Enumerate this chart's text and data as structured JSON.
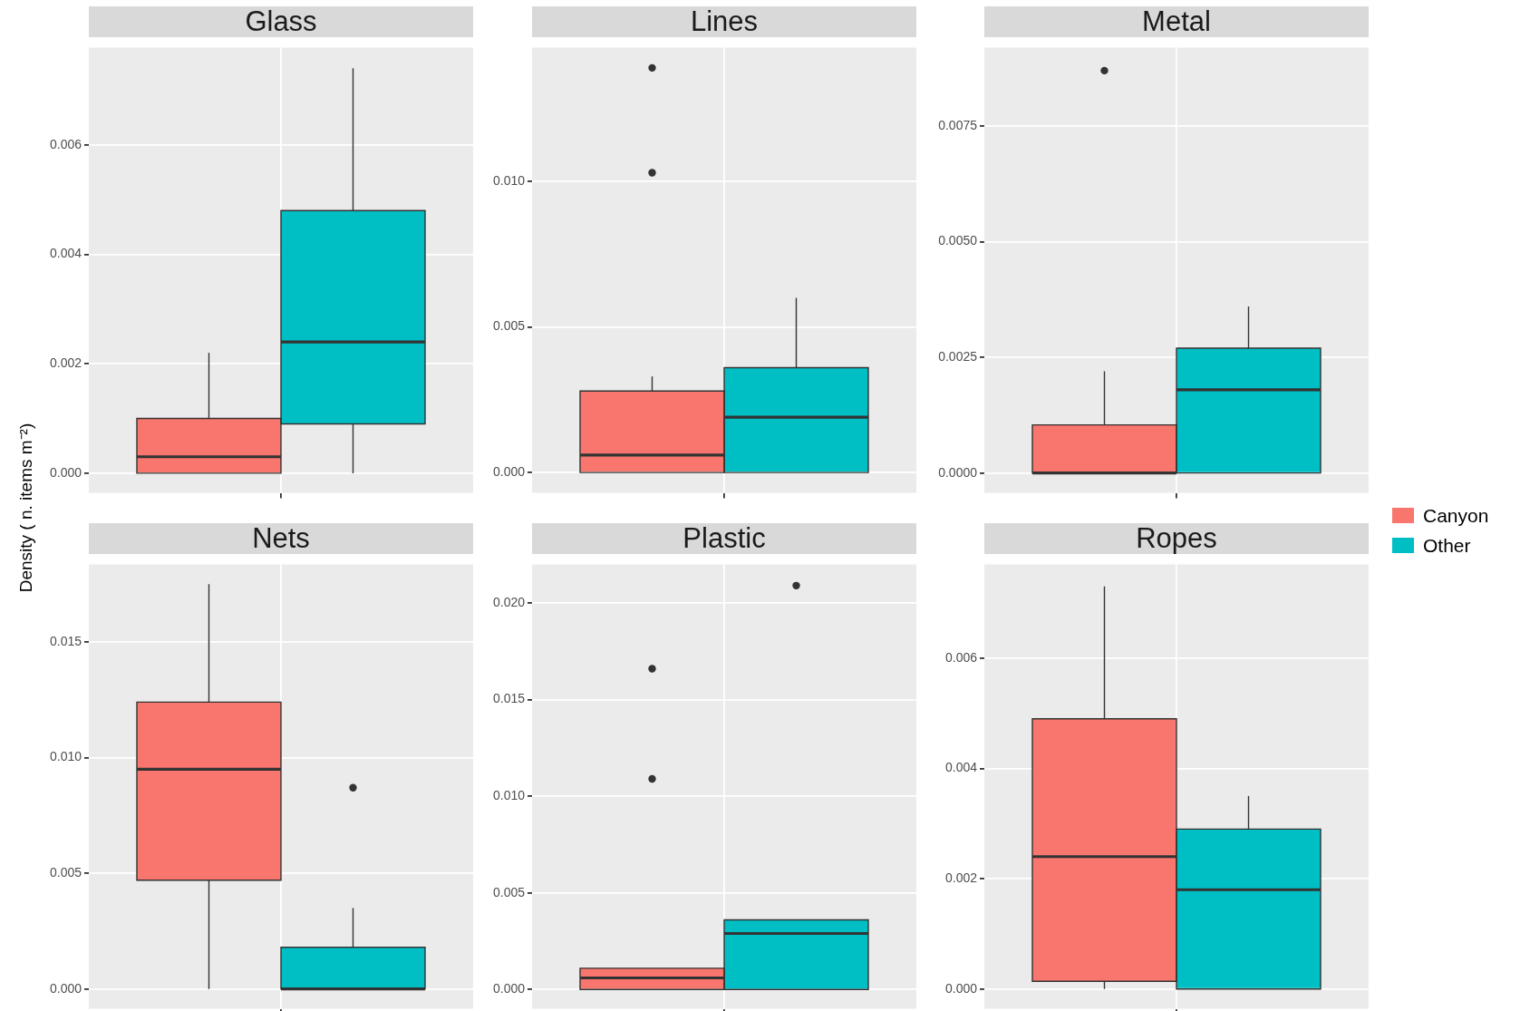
{
  "chart_data": [
    {
      "type": "box",
      "title": "Glass",
      "ylabel": "Density ( n. items m⁻²)",
      "legend": "right",
      "categories": [
        null
      ],
      "ylim": [
        -0.00036,
        0.00778
      ],
      "yticks": [
        {
          "value": 0,
          "label": "0.000"
        },
        {
          "value": 0.002,
          "label": "0.002"
        },
        {
          "value": 0.004,
          "label": "0.004"
        },
        {
          "value": 0.006,
          "label": "0.006"
        }
      ],
      "grid": true,
      "tick_labels": "y",
      "series": [
        {
          "name": "Canyon",
          "color": "#f8766d",
          "boxes": [
            {
              "low": 0,
              "q1": 0,
              "median": 0.0003,
              "q3": 0.001,
              "high": 0.0022
            }
          ]
        },
        {
          "name": "Other",
          "color": "#00bfc4",
          "boxes": [
            {
              "low": 0,
              "q1": 0.0009,
              "median": 0.0024,
              "q3": 0.0048,
              "high": 0.0074
            }
          ]
        }
      ]
    },
    {
      "type": "box",
      "title": "Lines",
      "categories": [
        null
      ],
      "ylim": [
        -0.0007,
        0.0146
      ],
      "yticks": [
        {
          "value": 0,
          "label": "0.000"
        },
        {
          "value": 0.005,
          "label": "0.005"
        },
        {
          "value": 0.01,
          "label": "0.010"
        }
      ],
      "grid": true,
      "tick_labels": "y",
      "series": [
        {
          "color": "#f8766d",
          "boxes": [
            {
              "low": 0,
              "q1": 0,
              "median": 0.0006,
              "q3": 0.0028,
              "high": 0.0033,
              "outliers": [
                0.0139,
                0.0103
              ]
            }
          ]
        },
        {
          "color": "#00bfc4",
          "boxes": [
            {
              "low": 0,
              "q1": 0,
              "median": 0.0019,
              "q3": 0.0036,
              "high": 0.006
            }
          ]
        }
      ]
    },
    {
      "type": "box",
      "title": "Metal",
      "categories": [
        null
      ],
      "ylim": [
        -0.00043,
        0.0092
      ],
      "yticks": [
        {
          "value": 0,
          "label": "0.0000"
        },
        {
          "value": 0.0025,
          "label": "0.0025"
        },
        {
          "value": 0.005,
          "label": "0.0050"
        },
        {
          "value": 0.0075,
          "label": "0.0075"
        }
      ],
      "grid": true,
      "tick_labels": "y",
      "series": [
        {
          "color": "#f8766d",
          "boxes": [
            {
              "low": 0,
              "q1": 0,
              "median": 0,
              "q3": 0.00104,
              "high": 0.0022,
              "outliers": [
                0.0087
              ]
            }
          ]
        },
        {
          "color": "#00bfc4",
          "boxes": [
            {
              "low": 0,
              "q1": 0,
              "median": 0.0018,
              "q3": 0.0027,
              "high": 0.0036
            }
          ]
        }
      ]
    },
    {
      "type": "box",
      "title": "Nets",
      "categories": [
        null
      ],
      "ylim": [
        -0.00086,
        0.01836
      ],
      "yticks": [
        {
          "value": 0,
          "label": "0.000"
        },
        {
          "value": 0.005,
          "label": "0.005"
        },
        {
          "value": 0.01,
          "label": "0.010"
        },
        {
          "value": 0.015,
          "label": "0.015"
        }
      ],
      "grid": true,
      "tick_labels": "y",
      "series": [
        {
          "color": "#f8766d",
          "boxes": [
            {
              "low": 0,
              "q1": 0.0047,
              "median": 0.0095,
              "q3": 0.0124,
              "high": 0.0175
            }
          ]
        },
        {
          "color": "#00bfc4",
          "boxes": [
            {
              "low": 0,
              "q1": 0,
              "median": 0,
              "q3": 0.0018,
              "high": 0.0035,
              "outliers": [
                0.0087
              ]
            }
          ]
        }
      ]
    },
    {
      "type": "box",
      "title": "Plastic",
      "categories": [
        null
      ],
      "ylim": [
        -0.001,
        0.022
      ],
      "yticks": [
        {
          "value": 0,
          "label": "0.000"
        },
        {
          "value": 0.005,
          "label": "0.005"
        },
        {
          "value": 0.01,
          "label": "0.010"
        },
        {
          "value": 0.015,
          "label": "0.015"
        },
        {
          "value": 0.02,
          "label": "0.020"
        }
      ],
      "grid": true,
      "tick_labels": "y",
      "series": [
        {
          "color": "#f8766d",
          "boxes": [
            {
              "low": 0,
              "q1": 0,
              "median": 0.0006,
              "q3": 0.0011,
              "high": 0.0011,
              "outliers": [
                0.0166,
                0.0109
              ]
            }
          ]
        },
        {
          "color": "#00bfc4",
          "boxes": [
            {
              "low": 0,
              "q1": 0,
              "median": 0.0029,
              "q3": 0.0036,
              "high": 0.0036,
              "outliers": [
                0.0209
              ]
            }
          ]
        }
      ]
    },
    {
      "type": "box",
      "title": "Ropes",
      "categories": [
        null
      ],
      "ylim": [
        -0.00036,
        0.0077
      ],
      "yticks": [
        {
          "value": 0,
          "label": "0.000"
        },
        {
          "value": 0.002,
          "label": "0.002"
        },
        {
          "value": 0.004,
          "label": "0.004"
        },
        {
          "value": 0.006,
          "label": "0.006"
        }
      ],
      "grid": true,
      "tick_labels": "y",
      "series": [
        {
          "color": "#f8766d",
          "boxes": [
            {
              "low": 0,
              "q1": 0.00014,
              "median": 0.0024,
              "q3": 0.0049,
              "high": 0.0073
            }
          ]
        },
        {
          "color": "#00bfc4",
          "boxes": [
            {
              "low": 0,
              "q1": 0,
              "median": 0.0018,
              "q3": 0.0029,
              "high": 0.0035
            }
          ]
        }
      ]
    }
  ]
}
